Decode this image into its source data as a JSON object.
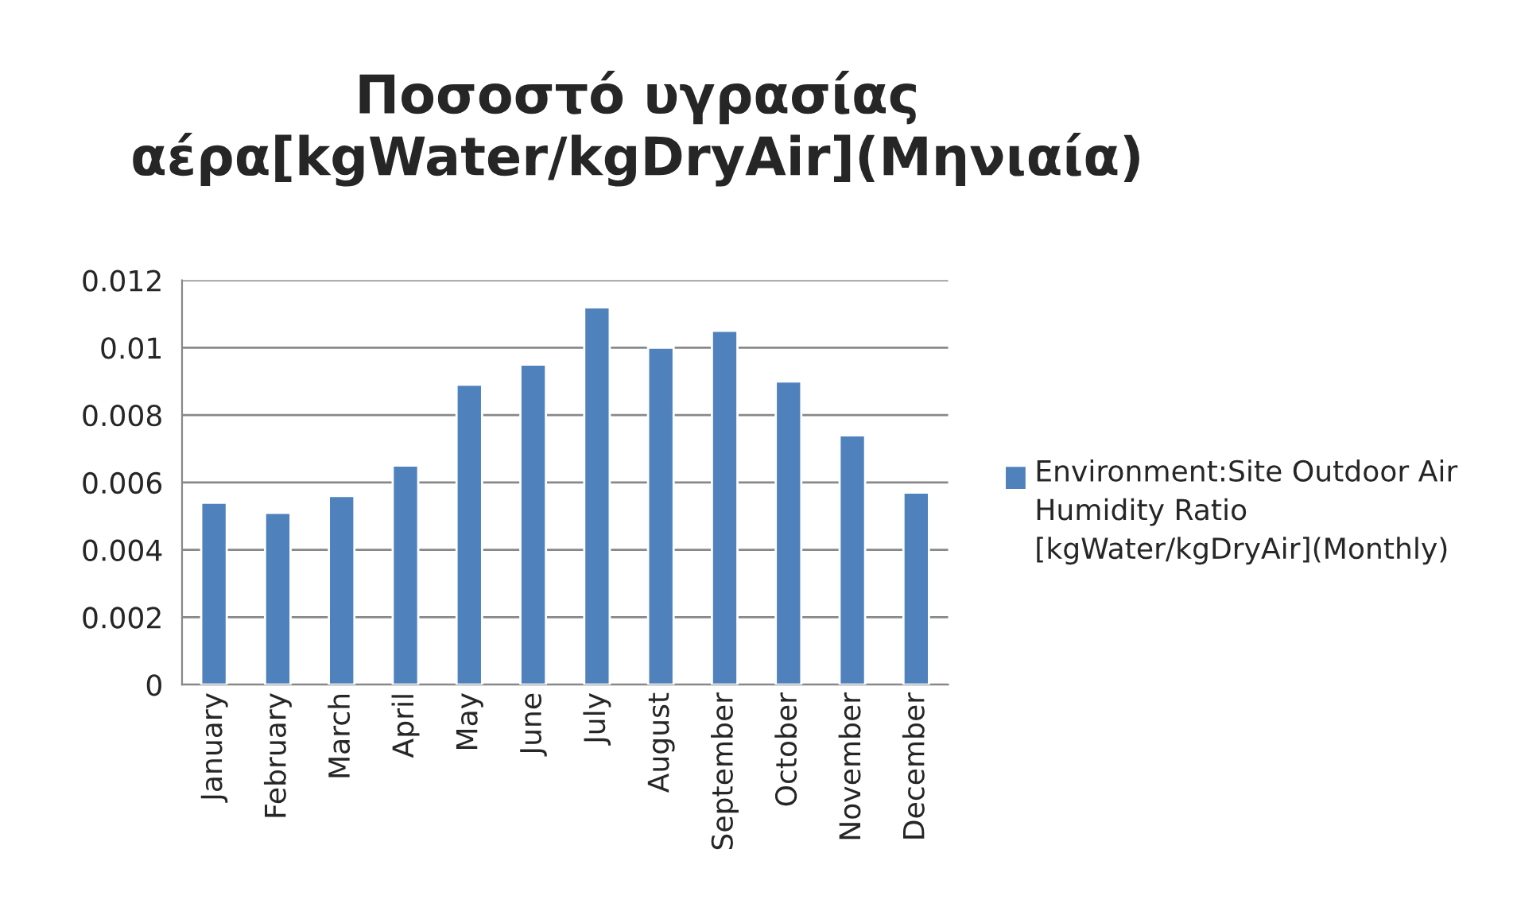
{
  "chart_data": {
    "type": "bar",
    "title": "Ποσοστό υγρασίας αέρα[kgWater/kgDryAir](Μηνιαία)",
    "categories": [
      "January",
      "February",
      "March",
      "April",
      "May",
      "June",
      "July",
      "August",
      "September",
      "October",
      "November",
      "December"
    ],
    "series": [
      {
        "name": "Environment:Site Outdoor Air Humidity Ratio [kgWater/kgDryAir](Monthly)",
        "color": "#4f81bd",
        "values": [
          0.0054,
          0.0051,
          0.0056,
          0.0065,
          0.0089,
          0.0095,
          0.0112,
          0.01,
          0.0105,
          0.009,
          0.0074,
          0.0057
        ]
      }
    ],
    "ylim": [
      0,
      0.012
    ],
    "yticks": [
      0,
      {
        "value": 0.002,
        "label": "0.002"
      },
      {
        "value": 0.004,
        "label": "0.004"
      },
      {
        "value": 0.006,
        "label": "0.006"
      },
      {
        "value": 0.008,
        "label": "0.008"
      },
      {
        "value": 0.01,
        "label": "0.01"
      },
      {
        "value": 0.012,
        "label": "0.012"
      }
    ],
    "grid": "y",
    "legend": "right"
  }
}
